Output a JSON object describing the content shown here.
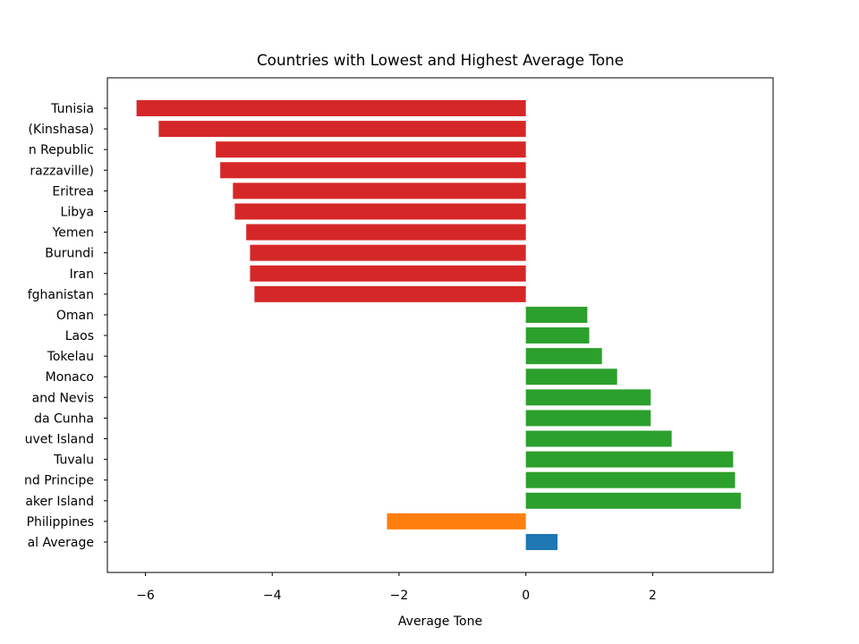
{
  "chart_data": {
    "type": "bar",
    "orientation": "horizontal",
    "title": "Countries with Lowest and Highest Average Tone",
    "xlabel": "Average Tone",
    "ylabel": "",
    "xlim": [
      -6.6,
      3.9
    ],
    "xticks": [
      -6,
      -4,
      -2,
      0,
      2
    ],
    "xtick_labels": [
      "−6",
      "−4",
      "−2",
      "0",
      "2"
    ],
    "grid": false,
    "bars": [
      {
        "label": "Tunisia",
        "value": -6.14,
        "color": "#d62728"
      },
      {
        "label": "(Kinshasa)",
        "value": -5.79,
        "color": "#d62728"
      },
      {
        "label": "n Republic",
        "value": -4.89,
        "color": "#d62728"
      },
      {
        "label": "razzaville)",
        "value": -4.82,
        "color": "#d62728"
      },
      {
        "label": "Eritrea",
        "value": -4.62,
        "color": "#d62728"
      },
      {
        "label": "Libya",
        "value": -4.59,
        "color": "#d62728"
      },
      {
        "label": "Yemen",
        "value": -4.41,
        "color": "#d62728"
      },
      {
        "label": "Burundi",
        "value": -4.35,
        "color": "#d62728"
      },
      {
        "label": "Iran",
        "value": -4.35,
        "color": "#d62728"
      },
      {
        "label": "fghanistan",
        "value": -4.28,
        "color": "#d62728"
      },
      {
        "label": "Oman",
        "value": 0.97,
        "color": "#2ca02c"
      },
      {
        "label": "Laos",
        "value": 1.0,
        "color": "#2ca02c"
      },
      {
        "label": "Tokelau",
        "value": 1.2,
        "color": "#2ca02c"
      },
      {
        "label": "Monaco",
        "value": 1.44,
        "color": "#2ca02c"
      },
      {
        "label": "and Nevis",
        "value": 1.97,
        "color": "#2ca02c"
      },
      {
        "label": "da Cunha",
        "value": 1.97,
        "color": "#2ca02c"
      },
      {
        "label": "uvet Island",
        "value": 2.3,
        "color": "#2ca02c"
      },
      {
        "label": "Tuvalu",
        "value": 3.27,
        "color": "#2ca02c"
      },
      {
        "label": "nd Principe",
        "value": 3.3,
        "color": "#2ca02c"
      },
      {
        "label": "aker Island",
        "value": 3.39,
        "color": "#2ca02c"
      },
      {
        "label": "Philippines",
        "value": -2.19,
        "color": "#ff7f0e"
      },
      {
        "label": "al Average",
        "value": 0.5,
        "color": "#1f77b4"
      }
    ]
  }
}
